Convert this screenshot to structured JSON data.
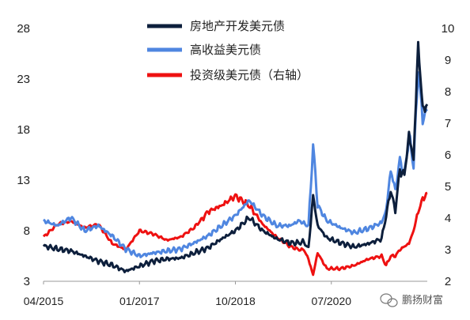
{
  "chart_data": {
    "type": "line",
    "x_ticks": [
      "04/2015",
      "01/2017",
      "10/2018",
      "07/2020"
    ],
    "x_tick_dates": [
      "2015-04",
      "2017-01",
      "2018-10",
      "2020-07"
    ],
    "yleft": {
      "lim": [
        3,
        28
      ],
      "ticks": [
        3,
        8,
        13,
        18,
        23,
        28
      ]
    },
    "yright": {
      "lim": [
        2,
        10
      ],
      "ticks": [
        2,
        3,
        4,
        5,
        6,
        7,
        8,
        9,
        10
      ]
    },
    "grid": false,
    "legend_position": "top-center",
    "series": [
      {
        "name": "房地产开发美元债",
        "axis": "left",
        "color": "#0d1f3c",
        "x": [
          "2015-04",
          "2015-07",
          "2015-10",
          "2016-01",
          "2016-04",
          "2016-07",
          "2016-10",
          "2017-01",
          "2017-04",
          "2017-07",
          "2017-10",
          "2018-01",
          "2018-04",
          "2018-07",
          "2018-10",
          "2019-01",
          "2019-04",
          "2019-07",
          "2019-10",
          "2019-12",
          "2020-01",
          "2020-02",
          "2020-03",
          "2020-04",
          "2020-06",
          "2020-09",
          "2020-12",
          "2021-03",
          "2021-06",
          "2021-07",
          "2021-08",
          "2021-09",
          "2021-10",
          "2021-11",
          "2021-12",
          "2022-01",
          "2022-02",
          "2022-03",
          "2022-04"
        ],
        "y": [
          6.5,
          6.2,
          6.0,
          5.5,
          5.0,
          4.6,
          4.0,
          4.5,
          5.0,
          5.2,
          5.3,
          5.8,
          6.3,
          7.2,
          8.0,
          9.3,
          8.0,
          7.2,
          6.8,
          6.8,
          6.9,
          6.2,
          11.5,
          8.5,
          7.3,
          6.8,
          6.4,
          6.7,
          7.2,
          9.5,
          12.0,
          10.0,
          14.0,
          13.5,
          17.5,
          15.0,
          26.5,
          20.0,
          20.5
        ]
      },
      {
        "name": "高收益美元债",
        "axis": "left",
        "color": "#4f86e0",
        "x": [
          "2015-04",
          "2015-07",
          "2015-10",
          "2016-01",
          "2016-04",
          "2016-07",
          "2016-10",
          "2017-01",
          "2017-04",
          "2017-07",
          "2017-10",
          "2018-01",
          "2018-04",
          "2018-07",
          "2018-10",
          "2019-01",
          "2019-04",
          "2019-07",
          "2019-10",
          "2019-12",
          "2020-01",
          "2020-02",
          "2020-03",
          "2020-04",
          "2020-06",
          "2020-09",
          "2020-12",
          "2021-03",
          "2021-06",
          "2021-07",
          "2021-08",
          "2021-09",
          "2021-10",
          "2021-11",
          "2021-12",
          "2022-01",
          "2022-02",
          "2022-03",
          "2022-04"
        ],
        "y": [
          9.0,
          8.5,
          9.3,
          8.0,
          8.5,
          7.5,
          6.2,
          5.5,
          5.8,
          6.0,
          6.2,
          6.8,
          7.5,
          8.5,
          9.5,
          11.0,
          9.5,
          8.5,
          8.5,
          9.0,
          8.7,
          8.5,
          16.5,
          10.5,
          9.0,
          8.3,
          7.8,
          8.2,
          8.8,
          10.0,
          14.0,
          12.0,
          15.0,
          13.5,
          17.5,
          14.5,
          24.0,
          19.0,
          20.0
        ]
      },
      {
        "name": "投资级美元债（右轴）",
        "axis": "right",
        "color": "#ee1111",
        "x": [
          "2015-04",
          "2015-07",
          "2015-10",
          "2016-01",
          "2016-04",
          "2016-07",
          "2016-10",
          "2017-01",
          "2017-04",
          "2017-07",
          "2017-10",
          "2018-01",
          "2018-04",
          "2018-07",
          "2018-10",
          "2019-01",
          "2019-04",
          "2019-07",
          "2019-10",
          "2019-12",
          "2020-01",
          "2020-02",
          "2020-03",
          "2020-04",
          "2020-06",
          "2020-09",
          "2020-12",
          "2021-03",
          "2021-06",
          "2021-07",
          "2021-08",
          "2021-09",
          "2021-10",
          "2021-11",
          "2021-12",
          "2022-01",
          "2022-02",
          "2022-03",
          "2022-04"
        ],
        "y": [
          3.4,
          3.8,
          3.9,
          3.7,
          3.8,
          3.2,
          3.0,
          3.6,
          3.5,
          3.3,
          3.4,
          3.7,
          4.2,
          4.4,
          4.7,
          4.4,
          3.8,
          3.4,
          3.1,
          3.0,
          3.0,
          2.7,
          2.2,
          2.9,
          2.4,
          2.4,
          2.5,
          2.7,
          2.8,
          2.5,
          2.8,
          2.8,
          3.0,
          3.1,
          3.2,
          3.6,
          4.2,
          4.6,
          4.8
        ]
      }
    ]
  },
  "watermark": {
    "text": "鹏扬财富",
    "icon": "wechat-icon"
  }
}
